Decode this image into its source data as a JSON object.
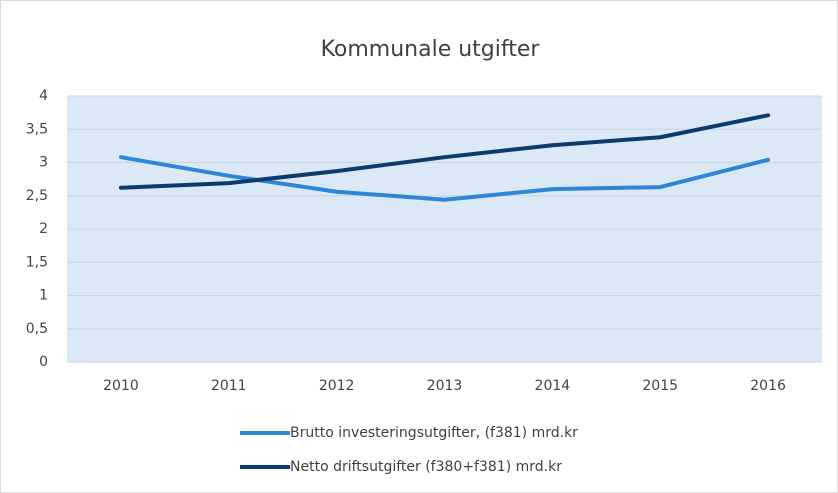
{
  "chart_data": {
    "type": "line",
    "title": "Kommunale utgifter",
    "categories": [
      "2010",
      "2011",
      "2012",
      "2013",
      "2014",
      "2015",
      "2016"
    ],
    "series": [
      {
        "name": "Brutto investeringsutgifter, (f381) mrd.kr",
        "color": "#2e86d6",
        "values": [
          3.08,
          2.8,
          2.56,
          2.44,
          2.6,
          2.63,
          3.04
        ]
      },
      {
        "name": "Netto driftsutgifter (f380+f381) mrd.kr",
        "color": "#0d3a6e",
        "values": [
          2.62,
          2.69,
          2.87,
          3.08,
          3.26,
          3.38,
          3.71
        ]
      }
    ],
    "ylim": [
      0,
      4
    ],
    "yticks": [
      0,
      {
        "value": 0.5,
        "label": "0,5"
      },
      1,
      {
        "value": 1.5,
        "label": "1,5"
      },
      2,
      {
        "value": 2.5,
        "label": "2,5"
      },
      3,
      {
        "value": 3.5,
        "label": "3,5"
      },
      4
    ],
    "grid": true
  }
}
